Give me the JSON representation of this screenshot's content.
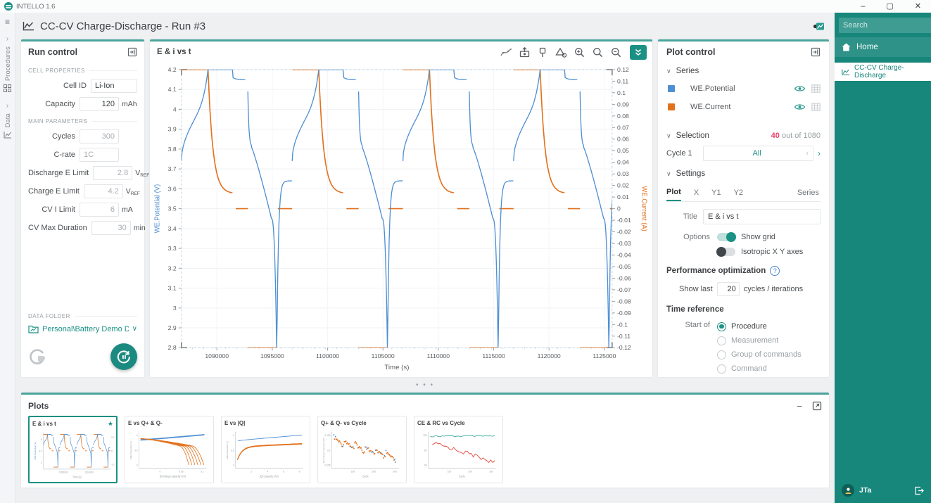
{
  "app": {
    "name": "INTELLO 1.6"
  },
  "icons": {
    "minimize": "–",
    "maximize": "▢",
    "close": "✕",
    "dots_v": "⋮",
    "chev_r": "›",
    "chev_l": "‹",
    "chev_d": "∨",
    "star": "★",
    "minus": "−",
    "help": "?",
    "hamburger": "≡",
    "ellipsis": "• • •"
  },
  "header": {
    "title": "CC-CV Charge-Discharge - Run #3"
  },
  "left_rail": {
    "tabs": [
      {
        "label": "Procedures"
      },
      {
        "label": "Data"
      }
    ]
  },
  "run_control": {
    "title": "Run control",
    "sections": {
      "cell": "CELL PROPERTIES",
      "main": "MAIN PARAMETERS",
      "folder": "DATA FOLDER"
    },
    "cell_params": [
      {
        "label": "Cell ID",
        "value": "Li-Ion",
        "unit": ""
      },
      {
        "label": "Capacity",
        "value": "120",
        "unit": "mAh"
      }
    ],
    "main_params": [
      {
        "label": "Cycles",
        "value": "300",
        "unit": ""
      },
      {
        "label": "C-rate",
        "value": "1C",
        "unit": ""
      },
      {
        "label": "Discharge E Limit",
        "value": "2.8",
        "unit": "V",
        "unit_sub": "REF"
      },
      {
        "label": "Charge E Limit",
        "value": "4.2",
        "unit": "V",
        "unit_sub": "REF"
      },
      {
        "label": "CV I Limit",
        "value": "6",
        "unit": "mA"
      },
      {
        "label": "CV Max Duration",
        "value": "30",
        "unit": "min"
      }
    ],
    "data_folder": "Personal\\Battery Demo Data"
  },
  "chart_panel": {
    "title": "E & i vs t",
    "toolbar_icons": [
      "trend",
      "export-image",
      "pin",
      "shapes",
      "zoom-in",
      "zoom-area",
      "zoom-out",
      "collapse"
    ]
  },
  "plot_control": {
    "title": "Plot control",
    "series_header": "Series",
    "series": [
      {
        "name": "WE.Potential",
        "color": "#4e8fd2"
      },
      {
        "name": "WE.Current",
        "color": "#e2711d"
      }
    ],
    "selection_header": "Selection",
    "selection_count": "40",
    "selection_total": " out of 1080",
    "cycle_label": "Cycle 1",
    "cycle_value": "All",
    "settings_header": "Settings",
    "tabs": [
      "Plot",
      "X",
      "Y1",
      "Y2",
      "Series"
    ],
    "title_label": "Title",
    "title_value": "E & i vs t",
    "options_label": "Options",
    "toggles": [
      {
        "label": "Show grid",
        "on": true
      },
      {
        "label": "Isotropic X Y axes",
        "on": false
      }
    ],
    "perf_header": "Performance optimization",
    "show_last_label": "Show last",
    "show_last_value": "20",
    "show_last_suffix": "cycles / iterations",
    "time_ref_header": "Time reference",
    "start_of_label": "Start of",
    "radios": [
      {
        "label": "Procedure",
        "selected": true
      },
      {
        "label": "Measurement",
        "selected": false
      },
      {
        "label": "Group of commands",
        "selected": false
      },
      {
        "label": "Command",
        "selected": false
      }
    ]
  },
  "plots_panel": {
    "title": "Plots"
  },
  "sidebar": {
    "search_placeholder": "Search",
    "items": [
      {
        "label": "Home"
      },
      {
        "label": "CC-CV Charge-Discharge"
      }
    ],
    "user": "JTa"
  },
  "chart_data": {
    "main": {
      "type": "line",
      "title": "E & i vs t",
      "xlabel": "Time (s)",
      "y1label": "WE.Potential (V)",
      "y2label": "WE.Current (A)",
      "xlim": [
        1086800,
        1125700
      ],
      "y1lim": [
        2.8,
        4.2
      ],
      "y2lim": [
        -0.12,
        0.12
      ],
      "x_ticks": [
        1090000,
        1095000,
        1100000,
        1105000,
        1110000,
        1115000,
        1120000,
        1125000
      ],
      "y1_ticks": [
        "4.2",
        "4.1",
        "4",
        "3.9",
        "3.8",
        "3.7",
        "3.6",
        "3.5",
        "3.4",
        "3.3",
        "3.2",
        "3.1",
        "3",
        "2.9",
        "2.8"
      ],
      "y2_ticks": [
        "0.12",
        "0.11",
        "0.1",
        "0.09",
        "0.08",
        "0.07",
        "0.06",
        "0.05",
        "0.04",
        "0.03",
        "0.02",
        "0.01",
        "0",
        "-0.01",
        "-0.02",
        "-0.03",
        "-0.04",
        "-0.05",
        "-0.06",
        "-0.07",
        "-0.08",
        "-0.09",
        "-0.1",
        "-0.11",
        "-0.12"
      ],
      "grid": true,
      "legend_position": "none",
      "series": [
        {
          "name": "WE.Potential",
          "axis": "y1",
          "color": "#4e8fd2"
        },
        {
          "name": "WE.Current",
          "axis": "y2",
          "color": "#e2711d"
        }
      ],
      "cycles": {
        "count": 4,
        "first_start_s": 1086800,
        "period_s": 10000,
        "phases": [
          {
            "name": "cc_charge",
            "duration_s": 2400,
            "current_A": 0.12,
            "v_start": 3.74,
            "v_end": 4.2
          },
          {
            "name": "cv_hold",
            "duration_s": 2200,
            "voltage_V": 4.2,
            "i_start": 0.12,
            "i_end": 0.013
          },
          {
            "name": "rest_after_charge",
            "duration_s": 1400,
            "current_A": 0,
            "v_start": 4.16,
            "v_end": 4.15
          },
          {
            "name": "cc_discharge",
            "duration_s": 2600,
            "current_A": -0.12,
            "v_start": 4.09,
            "v_end": 2.8
          },
          {
            "name": "rest_after_discharge",
            "duration_s": 1400,
            "current_A": 0,
            "v_start": 2.8,
            "v_end": 3.64
          }
        ]
      }
    },
    "thumbnails": [
      {
        "id": "e_i_vs_t",
        "type": "line",
        "title": "E & i vs t",
        "starred": true,
        "selected": true,
        "xlabel": "Time (s)",
        "ylabel_left": "WE.Potential (V)",
        "ylabel_right": "WE.Current (A)",
        "y1ticks": [
          "4",
          "3.5",
          "3"
        ],
        "y2ticks": [
          "0.1",
          "0",
          "-0.1"
        ],
        "xticks": [
          "1095000",
          "1110000"
        ]
      },
      {
        "id": "e_vs_q",
        "type": "line",
        "title": "E vs Q+ & Q-",
        "xlabel": "Discharge capacity (Ah)",
        "ylabel": "WE.Potential (V)",
        "yticks": [
          "4",
          "3.5",
          "3"
        ],
        "xticks": [
          "0",
          "0.05",
          "0.1"
        ],
        "series": [
          {
            "name": "WE.Potential charge",
            "color": "#4e8fd2"
          },
          {
            "name": "WE.Potential discharge",
            "color": "#e2711d"
          }
        ]
      },
      {
        "id": "e_vs_absq",
        "type": "line",
        "title": "E vs |Q|",
        "xlabel": "|Q| Capacity (Ah)",
        "ylabel": "WE.Potential (V)",
        "yticks": [
          "4",
          "3.5",
          "3"
        ],
        "xticks": [
          "2",
          "4",
          "6",
          "8"
        ],
        "series": [
          {
            "name": "charge",
            "color": "#4e8fd2"
          },
          {
            "name": "discharge",
            "color": "#e2711d"
          }
        ]
      },
      {
        "id": "q_vs_cycle",
        "type": "scatter",
        "title": "Q+ & Q- vs Cycle",
        "xlabel": "Cycle",
        "ylabel": "Discharge capacity (Ah)",
        "yticks": [
          "0.105",
          "0.1",
          "0.095"
        ],
        "xticks": [
          "100",
          "200",
          "300"
        ],
        "series": [
          {
            "name": "Q+",
            "color": "#4e8fd2"
          },
          {
            "name": "Q-",
            "color": "#e2711d"
          }
        ]
      },
      {
        "id": "ce_rc_vs_cycle",
        "type": "line",
        "title": "CE & RC vs Cycle",
        "xlabel": "Cycle",
        "ylabel": "",
        "yticks": [
          "100",
          "80",
          "60"
        ],
        "xticks": [
          "100",
          "200",
          "300"
        ],
        "series": [
          {
            "name": "CE",
            "color": "#3aa8a0"
          },
          {
            "name": "RC",
            "color": "#e03c31"
          }
        ]
      }
    ]
  }
}
